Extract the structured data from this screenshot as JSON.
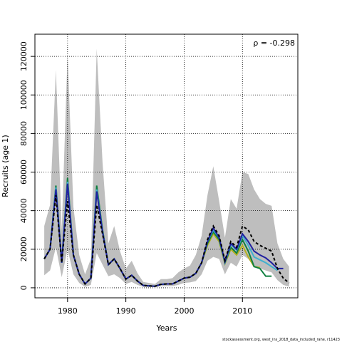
{
  "chart_data": {
    "type": "line",
    "xlabel": "Years",
    "ylabel": "Recruits (age 1)",
    "annotation": "ρ = -0.298",
    "footer": "stockassessment.org, west_ins_2018_data_included_rahe, r11423",
    "xlim": [
      1974.4,
      2019.5
    ],
    "ylim": [
      -5200,
      131500
    ],
    "xticks": [
      1980,
      1990,
      2000,
      2010
    ],
    "yticks": [
      0,
      20000,
      40000,
      60000,
      80000,
      100000,
      120000
    ],
    "grid": true,
    "band_color": "#bebebe",
    "x": [
      1976,
      1977,
      1978,
      1979,
      1980,
      1981,
      1982,
      1983,
      1984,
      1985,
      1986,
      1987,
      1988,
      1989,
      1990,
      1991,
      1992,
      1993,
      1994,
      1995,
      1996,
      1997,
      1998,
      1999,
      2000,
      2001,
      2002,
      2003,
      2004,
      2005,
      2006,
      2007,
      2008,
      2009,
      2010,
      2011,
      2012,
      2013,
      2014,
      2015,
      2016,
      2017,
      2018
    ],
    "band_upper": [
      32000,
      43000,
      113000,
      30000,
      121000,
      42000,
      17000,
      7000,
      15000,
      124000,
      65000,
      23000,
      32000,
      19000,
      10000,
      14000,
      7500,
      3000,
      2500,
      2000,
      4500,
      4500,
      5000,
      8000,
      10000,
      11500,
      17000,
      27000,
      48000,
      63000,
      45000,
      26000,
      46000,
      41000,
      60000,
      59000,
      51000,
      46000,
      43500,
      42500,
      23000,
      15000,
      11000
    ],
    "band_lower": [
      6500,
      9000,
      21000,
      5500,
      20000,
      7000,
      2500,
      500,
      1500,
      18000,
      12000,
      6000,
      7000,
      5000,
      2000,
      3000,
      1500,
      500,
      400,
      300,
      800,
      900,
      900,
      1500,
      2500,
      2800,
      3500,
      7000,
      14000,
      16000,
      15000,
      7000,
      13000,
      11000,
      17000,
      15000,
      11000,
      10000,
      9000,
      8000,
      4000,
      1500,
      600
    ],
    "series": [
      {
        "color": "#b5b020",
        "dash": false,
        "values": [
          15000,
          20000,
          51000,
          13000,
          54000,
          17000,
          7000,
          2000,
          5000,
          50000,
          29000,
          12000,
          15000,
          10000,
          4500,
          6500,
          3500,
          1200,
          1000,
          800,
          1800,
          2000,
          2000,
          3500,
          5000,
          5500,
          7500,
          13000,
          22000,
          28000,
          24000,
          12500,
          20000,
          17000,
          22000,
          16000,
          11000,
          10500,
          null,
          null,
          null,
          null,
          null
        ]
      },
      {
        "color": "#108040",
        "dash": false,
        "values": [
          15000,
          20000,
          53000,
          13000,
          57000,
          17000,
          7000,
          2000,
          5000,
          53000,
          30000,
          12000,
          15000,
          10000,
          4500,
          6500,
          3500,
          1200,
          1000,
          800,
          1800,
          2000,
          2000,
          3500,
          5000,
          5500,
          7500,
          13000,
          23000,
          29000,
          25000,
          13000,
          21000,
          18000,
          25000,
          19000,
          11000,
          10000,
          6000,
          6000,
          null,
          null,
          null
        ]
      },
      {
        "color": "#40b0d0",
        "dash": false,
        "values": [
          15000,
          20000,
          52000,
          13000,
          55000,
          17000,
          7000,
          2000,
          5000,
          51000,
          29000,
          12000,
          15000,
          10000,
          4500,
          6500,
          3500,
          1200,
          1000,
          800,
          1800,
          2000,
          2000,
          3500,
          5000,
          5500,
          7500,
          13000,
          24000,
          30000,
          26000,
          13000,
          22500,
          19500,
          27000,
          22000,
          16000,
          14500,
          13000,
          11000,
          9000,
          null,
          null
        ]
      },
      {
        "color": "#2020a0",
        "dash": false,
        "values": [
          15000,
          20000,
          51000,
          13000,
          54000,
          17000,
          7000,
          2000,
          5000,
          50000,
          29000,
          12000,
          15000,
          10000,
          4500,
          6500,
          3500,
          1200,
          1000,
          800,
          1800,
          2000,
          2000,
          3500,
          5000,
          5500,
          7500,
          13000,
          24000,
          31000,
          26000,
          13500,
          23000,
          20000,
          28000,
          24000,
          19000,
          17000,
          15500,
          13000,
          10000,
          10000,
          null
        ]
      },
      {
        "color": "#000000",
        "dash": true,
        "values": [
          15000,
          20000,
          48000,
          13000,
          45000,
          17000,
          7000,
          2000,
          5000,
          43000,
          28000,
          12000,
          15000,
          10000,
          4500,
          6500,
          3500,
          1200,
          1000,
          800,
          1800,
          2000,
          2000,
          3500,
          5000,
          5500,
          7500,
          13000,
          25000,
          32000,
          27000,
          14000,
          24000,
          21000,
          32000,
          30000,
          24000,
          22000,
          20500,
          19000,
          10000,
          5000,
          2500
        ]
      }
    ]
  }
}
